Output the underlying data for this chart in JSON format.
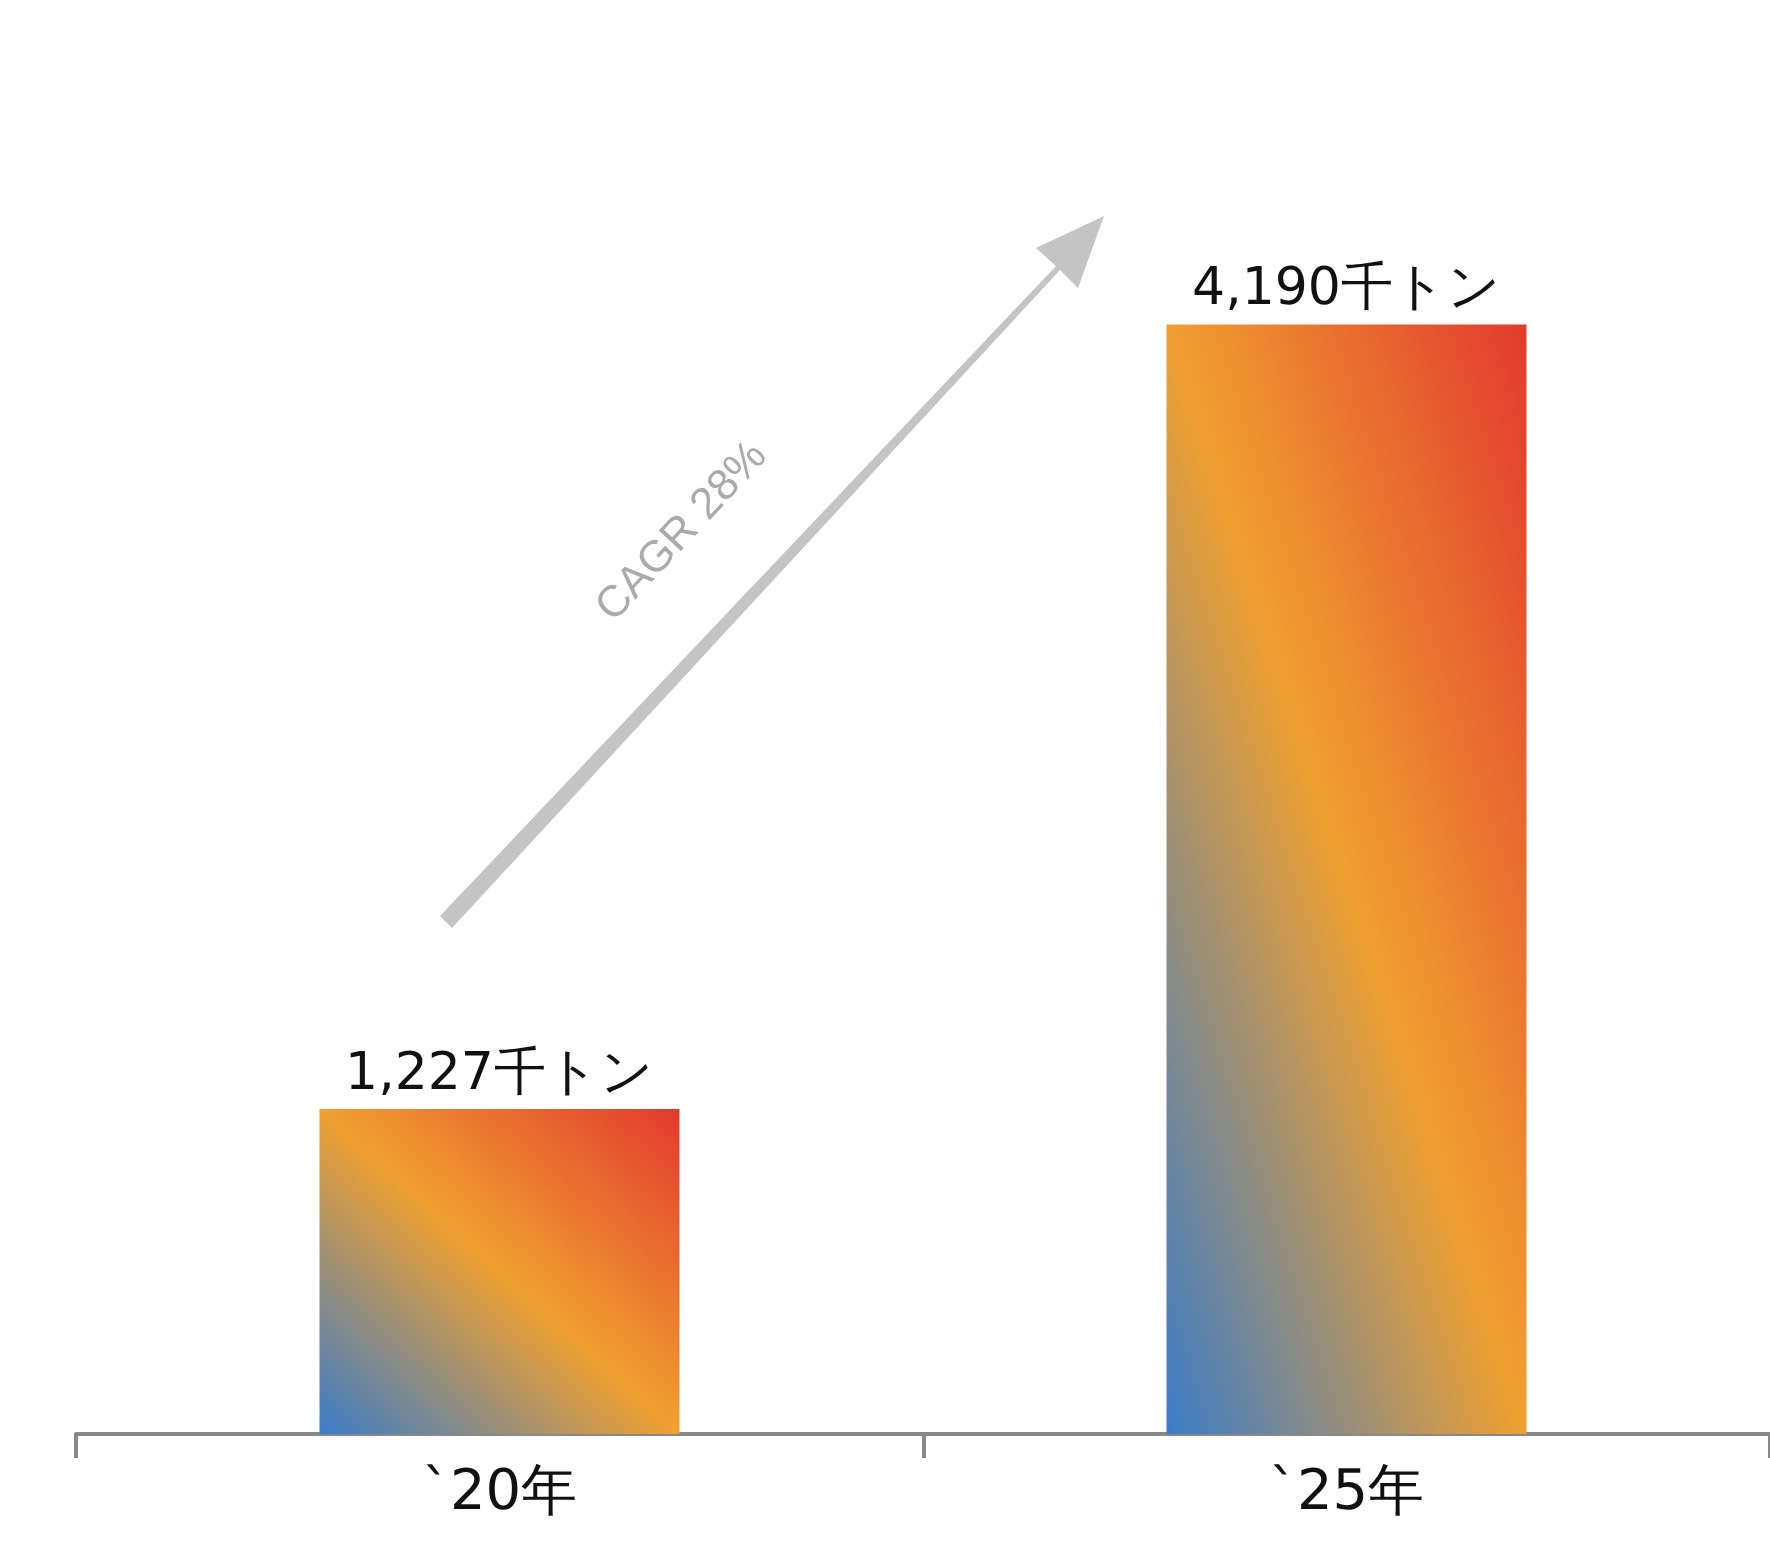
{
  "chart_data": {
    "type": "bar",
    "categories": [
      "`20年",
      "`25年"
    ],
    "values": [
      1227,
      4190
    ],
    "value_labels": [
      "1,227千トン",
      "4,190千トン"
    ],
    "color": "#f0a030",
    "annotations": [
      "CAGR 28%"
    ]
  }
}
